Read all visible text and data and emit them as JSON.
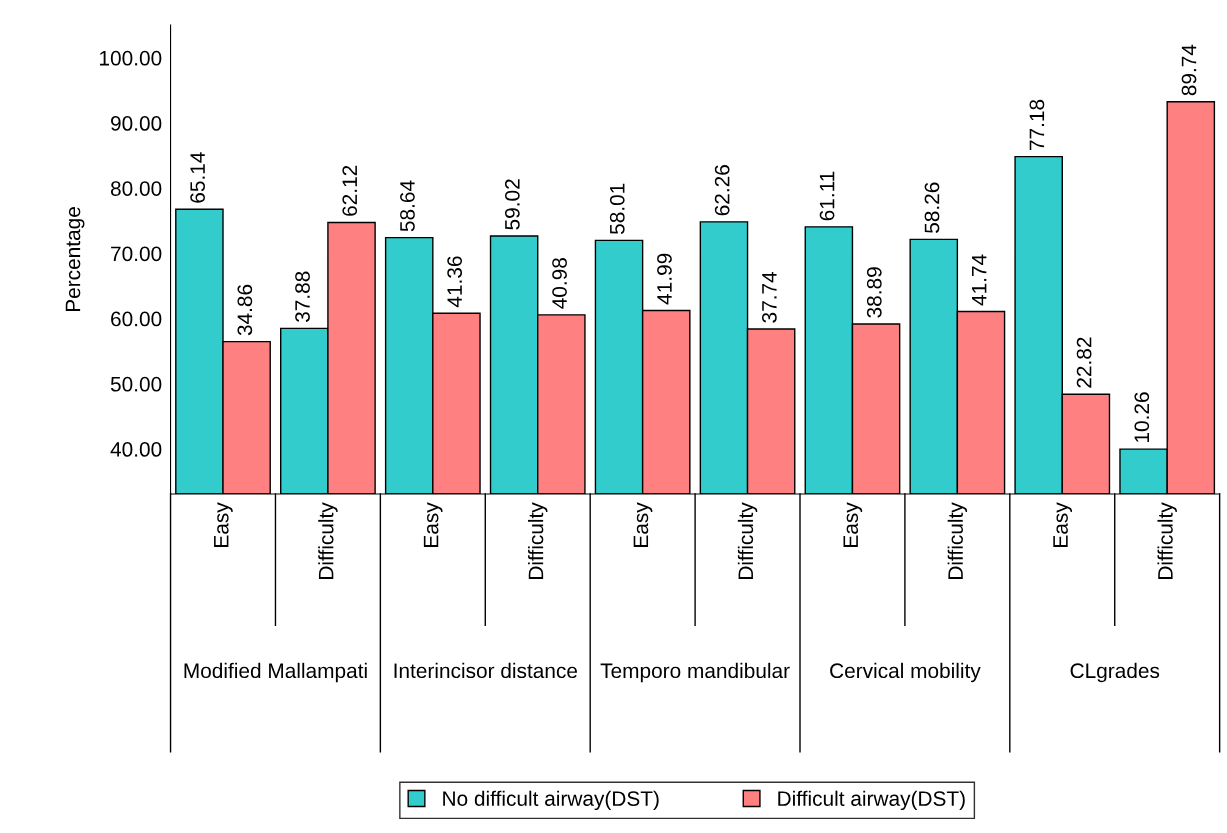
{
  "chart_data": {
    "type": "bar",
    "ylabel": "Percentage",
    "categories": [
      "Easy",
      "Difficulty",
      "Easy",
      "Difficulty",
      "Easy",
      "Difficulty",
      "Easy",
      "Difficulty",
      "Easy",
      "Difficulty"
    ],
    "annotations": [
      "Modified Mallampati",
      "Interincisor distance",
      "Temporo mandibular",
      "Cervical mobility",
      "CLgrades",
      "100.00",
      "90.00",
      "80.00",
      "70.00",
      "60.00",
      "50.00",
      "40.00"
    ],
    "series": [
      {
        "name": "No difficult airway(DST)",
        "color": "#33cccc",
        "values": [
          65.14,
          37.88,
          58.64,
          59.02,
          58.01,
          62.26,
          61.11,
          58.26,
          77.18,
          10.26
        ]
      },
      {
        "name": "Difficult airway(DST)",
        "color": "#ff8080",
        "values": [
          34.86,
          62.12,
          41.36,
          40.98,
          41.99,
          37.74,
          38.89,
          41.74,
          22.82,
          89.74
        ]
      }
    ],
    "ylim": [
      0,
      107.3
    ],
    "data_labels": true,
    "grid": false,
    "legend": "bottom"
  }
}
